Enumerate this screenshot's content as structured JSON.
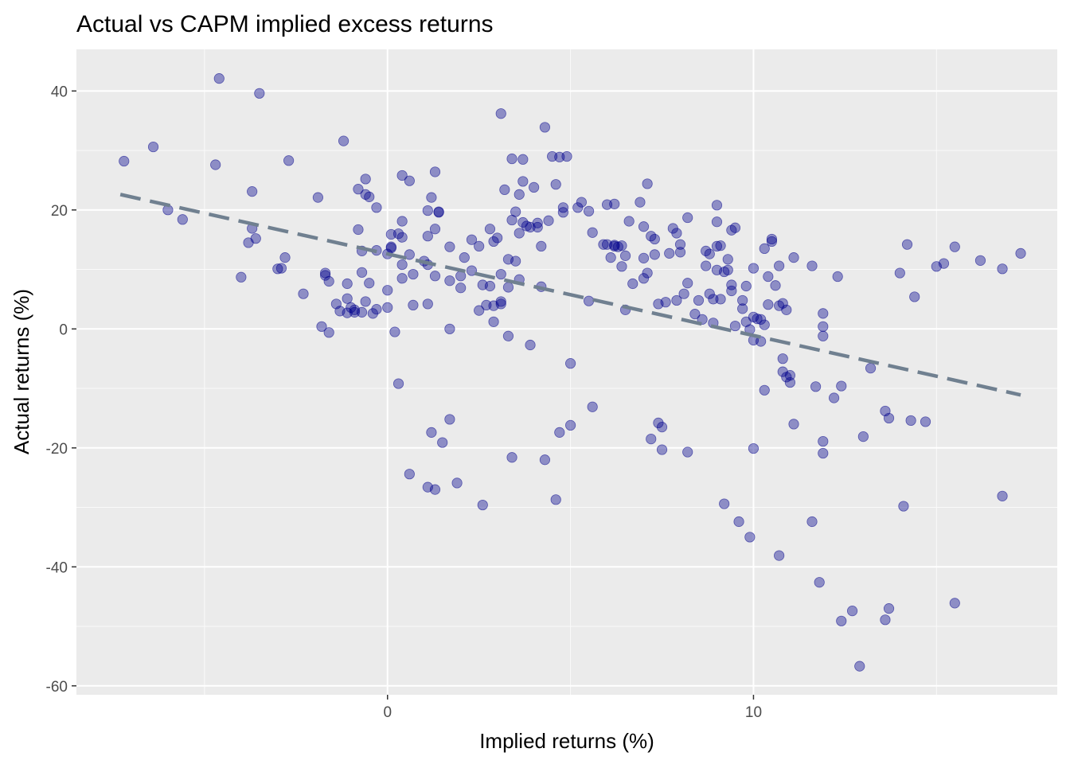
{
  "chart_data": {
    "type": "scatter",
    "title": "Actual vs CAPM implied excess returns",
    "xlabel": "Implied returns (%)",
    "ylabel": "Actual returns (%)",
    "xlim": [
      -8.5,
      18.3
    ],
    "ylim": [
      -61.5,
      47
    ],
    "x_ticks": [
      0,
      10
    ],
    "x_minor_ticks": [
      -5,
      5,
      15
    ],
    "y_ticks": [
      -60,
      -40,
      -20,
      0,
      20,
      40
    ],
    "y_minor_ticks": [
      -50,
      -30,
      -10,
      10,
      30
    ],
    "grid": true,
    "legend": "none",
    "point_color": "#00008b",
    "point_opacity": 0.4,
    "fit_line": {
      "style": "dashed",
      "color": "#708090",
      "x": [
        -7.3,
        17.3
      ],
      "y": [
        22.6,
        -11.1
      ]
    },
    "points": [
      {
        "x": -7.2,
        "y": 28.2
      },
      {
        "x": -6.4,
        "y": 30.6
      },
      {
        "x": -6.0,
        "y": 20.0
      },
      {
        "x": -5.6,
        "y": 18.4
      },
      {
        "x": -4.7,
        "y": 27.6
      },
      {
        "x": -4.6,
        "y": 42.1
      },
      {
        "x": -4.0,
        "y": 8.7
      },
      {
        "x": -3.8,
        "y": 14.5
      },
      {
        "x": -3.7,
        "y": 16.9
      },
      {
        "x": -3.7,
        "y": 23.1
      },
      {
        "x": -3.6,
        "y": 15.2
      },
      {
        "x": -3.5,
        "y": 39.6
      },
      {
        "x": -3.0,
        "y": 10.1
      },
      {
        "x": -2.9,
        "y": 10.2
      },
      {
        "x": -2.8,
        "y": 12.0
      },
      {
        "x": -2.7,
        "y": 28.3
      },
      {
        "x": -2.3,
        "y": 5.9
      },
      {
        "x": -1.9,
        "y": 22.1
      },
      {
        "x": -1.8,
        "y": 0.4
      },
      {
        "x": -1.7,
        "y": 9.4
      },
      {
        "x": -1.7,
        "y": 9.0
      },
      {
        "x": -1.6,
        "y": 8.0
      },
      {
        "x": -1.6,
        "y": -0.6
      },
      {
        "x": -1.4,
        "y": 4.2
      },
      {
        "x": -1.3,
        "y": 3.0
      },
      {
        "x": -1.2,
        "y": 31.6
      },
      {
        "x": -1.1,
        "y": 7.6
      },
      {
        "x": -1.1,
        "y": 5.1
      },
      {
        "x": -1.1,
        "y": 2.7
      },
      {
        "x": -1.0,
        "y": 3.6
      },
      {
        "x": -0.9,
        "y": 2.8
      },
      {
        "x": -0.9,
        "y": 3.2
      },
      {
        "x": -0.8,
        "y": 16.7
      },
      {
        "x": -0.8,
        "y": 23.5
      },
      {
        "x": -0.7,
        "y": 2.8
      },
      {
        "x": -0.7,
        "y": 9.5
      },
      {
        "x": -0.7,
        "y": 13.1
      },
      {
        "x": -0.6,
        "y": 22.6
      },
      {
        "x": -0.6,
        "y": 25.2
      },
      {
        "x": -0.6,
        "y": 4.6
      },
      {
        "x": -0.5,
        "y": 22.2
      },
      {
        "x": -0.5,
        "y": 7.7
      },
      {
        "x": -0.4,
        "y": 2.6
      },
      {
        "x": -0.3,
        "y": 3.3
      },
      {
        "x": -0.3,
        "y": 13.2
      },
      {
        "x": -0.3,
        "y": 20.4
      },
      {
        "x": 0.0,
        "y": 12.6
      },
      {
        "x": 0.0,
        "y": 6.5
      },
      {
        "x": 0.0,
        "y": 3.6
      },
      {
        "x": 0.1,
        "y": 13.6
      },
      {
        "x": 0.1,
        "y": 13.8
      },
      {
        "x": 0.1,
        "y": 15.9
      },
      {
        "x": 0.2,
        "y": -0.5
      },
      {
        "x": 0.3,
        "y": -9.2
      },
      {
        "x": 0.3,
        "y": 16.0
      },
      {
        "x": 0.4,
        "y": 15.4
      },
      {
        "x": 0.4,
        "y": 18.1
      },
      {
        "x": 0.4,
        "y": 10.8
      },
      {
        "x": 0.4,
        "y": 25.8
      },
      {
        "x": 0.4,
        "y": 8.5
      },
      {
        "x": 0.6,
        "y": 24.9
      },
      {
        "x": 0.6,
        "y": 12.5
      },
      {
        "x": 0.6,
        "y": -24.4
      },
      {
        "x": 0.7,
        "y": 9.2
      },
      {
        "x": 0.7,
        "y": 4.0
      },
      {
        "x": 1.0,
        "y": 11.4
      },
      {
        "x": 1.1,
        "y": 4.2
      },
      {
        "x": 1.1,
        "y": 19.9
      },
      {
        "x": 1.1,
        "y": 15.6
      },
      {
        "x": 1.1,
        "y": 10.8
      },
      {
        "x": 1.1,
        "y": -26.6
      },
      {
        "x": 1.2,
        "y": 22.1
      },
      {
        "x": 1.2,
        "y": -17.4
      },
      {
        "x": 1.3,
        "y": 26.4
      },
      {
        "x": 1.3,
        "y": 16.8
      },
      {
        "x": 1.3,
        "y": 8.9
      },
      {
        "x": 1.3,
        "y": -27.0
      },
      {
        "x": 1.4,
        "y": 19.6
      },
      {
        "x": 1.4,
        "y": 19.7
      },
      {
        "x": 1.5,
        "y": -19.1
      },
      {
        "x": 1.7,
        "y": -15.2
      },
      {
        "x": 1.7,
        "y": 13.8
      },
      {
        "x": 1.7,
        "y": 8.1
      },
      {
        "x": 1.7,
        "y": 0.0
      },
      {
        "x": 1.9,
        "y": -25.9
      },
      {
        "x": 2.0,
        "y": 6.9
      },
      {
        "x": 2.0,
        "y": 8.9
      },
      {
        "x": 2.1,
        "y": 12.0
      },
      {
        "x": 2.3,
        "y": 15.0
      },
      {
        "x": 2.3,
        "y": 9.8
      },
      {
        "x": 2.5,
        "y": 3.1
      },
      {
        "x": 2.5,
        "y": 13.9
      },
      {
        "x": 2.6,
        "y": -29.6
      },
      {
        "x": 2.6,
        "y": 7.4
      },
      {
        "x": 2.7,
        "y": 4.0
      },
      {
        "x": 2.8,
        "y": 16.8
      },
      {
        "x": 2.8,
        "y": 7.2
      },
      {
        "x": 2.9,
        "y": 1.2
      },
      {
        "x": 2.9,
        "y": 3.9
      },
      {
        "x": 2.9,
        "y": 14.7
      },
      {
        "x": 3.0,
        "y": 15.3
      },
      {
        "x": 3.1,
        "y": 36.2
      },
      {
        "x": 3.1,
        "y": 9.2
      },
      {
        "x": 3.1,
        "y": 4.6
      },
      {
        "x": 3.1,
        "y": 4.2
      },
      {
        "x": 3.2,
        "y": 23.4
      },
      {
        "x": 3.3,
        "y": -1.2
      },
      {
        "x": 3.3,
        "y": 7.0
      },
      {
        "x": 3.3,
        "y": 11.7
      },
      {
        "x": 3.4,
        "y": 28.6
      },
      {
        "x": 3.4,
        "y": -21.6
      },
      {
        "x": 3.4,
        "y": 18.3
      },
      {
        "x": 3.5,
        "y": 11.4
      },
      {
        "x": 3.5,
        "y": 19.7
      },
      {
        "x": 3.6,
        "y": 22.6
      },
      {
        "x": 3.6,
        "y": 8.3
      },
      {
        "x": 3.6,
        "y": 16.1
      },
      {
        "x": 3.7,
        "y": 28.5
      },
      {
        "x": 3.7,
        "y": 24.8
      },
      {
        "x": 3.7,
        "y": 17.9
      },
      {
        "x": 3.8,
        "y": 17.3
      },
      {
        "x": 3.9,
        "y": -2.7
      },
      {
        "x": 3.9,
        "y": 17.1
      },
      {
        "x": 4.0,
        "y": 23.8
      },
      {
        "x": 4.1,
        "y": 17.1
      },
      {
        "x": 4.1,
        "y": 17.8
      },
      {
        "x": 4.2,
        "y": 7.1
      },
      {
        "x": 4.2,
        "y": 13.9
      },
      {
        "x": 4.3,
        "y": 33.9
      },
      {
        "x": 4.3,
        "y": -22.0
      },
      {
        "x": 4.4,
        "y": 18.2
      },
      {
        "x": 4.5,
        "y": 29.0
      },
      {
        "x": 4.6,
        "y": 24.3
      },
      {
        "x": 4.6,
        "y": -28.7
      },
      {
        "x": 4.7,
        "y": -17.4
      },
      {
        "x": 4.7,
        "y": 28.9
      },
      {
        "x": 4.8,
        "y": 19.6
      },
      {
        "x": 4.8,
        "y": 20.4
      },
      {
        "x": 4.9,
        "y": 29.0
      },
      {
        "x": 5.0,
        "y": -16.2
      },
      {
        "x": 5.0,
        "y": -5.8
      },
      {
        "x": 5.2,
        "y": 20.4
      },
      {
        "x": 5.3,
        "y": 21.3
      },
      {
        "x": 5.5,
        "y": 19.8
      },
      {
        "x": 5.5,
        "y": 4.7
      },
      {
        "x": 5.6,
        "y": -13.1
      },
      {
        "x": 5.6,
        "y": 16.2
      },
      {
        "x": 5.9,
        "y": 14.2
      },
      {
        "x": 6.0,
        "y": 20.9
      },
      {
        "x": 6.0,
        "y": 14.2
      },
      {
        "x": 6.1,
        "y": 12.0
      },
      {
        "x": 6.2,
        "y": 13.9
      },
      {
        "x": 6.2,
        "y": 14.1
      },
      {
        "x": 6.2,
        "y": 21.0
      },
      {
        "x": 6.3,
        "y": 13.8
      },
      {
        "x": 6.4,
        "y": 14.0
      },
      {
        "x": 6.4,
        "y": 10.5
      },
      {
        "x": 6.5,
        "y": 3.2
      },
      {
        "x": 6.5,
        "y": 12.3
      },
      {
        "x": 6.6,
        "y": 18.1
      },
      {
        "x": 6.7,
        "y": 7.6
      },
      {
        "x": 6.9,
        "y": 21.3
      },
      {
        "x": 7.0,
        "y": 8.5
      },
      {
        "x": 7.0,
        "y": 17.2
      },
      {
        "x": 7.0,
        "y": 11.9
      },
      {
        "x": 7.1,
        "y": 24.4
      },
      {
        "x": 7.1,
        "y": 9.4
      },
      {
        "x": 7.2,
        "y": 15.6
      },
      {
        "x": 7.2,
        "y": -18.5
      },
      {
        "x": 7.3,
        "y": 12.5
      },
      {
        "x": 7.3,
        "y": 15.1
      },
      {
        "x": 7.4,
        "y": -15.8
      },
      {
        "x": 7.4,
        "y": 4.2
      },
      {
        "x": 7.5,
        "y": -16.5
      },
      {
        "x": 7.5,
        "y": -20.3
      },
      {
        "x": 7.6,
        "y": 4.5
      },
      {
        "x": 7.7,
        "y": 12.7
      },
      {
        "x": 7.8,
        "y": 16.9
      },
      {
        "x": 7.9,
        "y": 16.1
      },
      {
        "x": 7.9,
        "y": 4.8
      },
      {
        "x": 8.0,
        "y": 12.9
      },
      {
        "x": 8.0,
        "y": 14.2
      },
      {
        "x": 8.1,
        "y": 5.9
      },
      {
        "x": 8.2,
        "y": 18.7
      },
      {
        "x": 8.2,
        "y": 7.7
      },
      {
        "x": 8.2,
        "y": -20.7
      },
      {
        "x": 8.4,
        "y": 2.5
      },
      {
        "x": 8.5,
        "y": 4.8
      },
      {
        "x": 8.6,
        "y": 1.6
      },
      {
        "x": 8.7,
        "y": 13.1
      },
      {
        "x": 8.7,
        "y": 10.6
      },
      {
        "x": 8.8,
        "y": 12.6
      },
      {
        "x": 8.8,
        "y": 5.9
      },
      {
        "x": 8.9,
        "y": 5.0
      },
      {
        "x": 8.9,
        "y": 1.0
      },
      {
        "x": 9.0,
        "y": 20.8
      },
      {
        "x": 9.0,
        "y": 18.0
      },
      {
        "x": 9.0,
        "y": 13.9
      },
      {
        "x": 9.0,
        "y": 9.9
      },
      {
        "x": 9.1,
        "y": 5.0
      },
      {
        "x": 9.1,
        "y": 14.0
      },
      {
        "x": 9.2,
        "y": -29.4
      },
      {
        "x": 9.2,
        "y": 9.6
      },
      {
        "x": 9.3,
        "y": 11.7
      },
      {
        "x": 9.3,
        "y": 9.9
      },
      {
        "x": 9.4,
        "y": 16.6
      },
      {
        "x": 9.4,
        "y": 6.4
      },
      {
        "x": 9.4,
        "y": 7.4
      },
      {
        "x": 9.5,
        "y": 17.0
      },
      {
        "x": 9.5,
        "y": 0.5
      },
      {
        "x": 9.6,
        "y": -32.4
      },
      {
        "x": 9.7,
        "y": 4.8
      },
      {
        "x": 9.7,
        "y": 3.4
      },
      {
        "x": 9.8,
        "y": 7.2
      },
      {
        "x": 9.8,
        "y": 1.2
      },
      {
        "x": 9.9,
        "y": -0.1
      },
      {
        "x": 9.9,
        "y": -35.0
      },
      {
        "x": 10.0,
        "y": 10.2
      },
      {
        "x": 10.0,
        "y": 2.0
      },
      {
        "x": 10.0,
        "y": -1.9
      },
      {
        "x": 10.0,
        "y": -20.1
      },
      {
        "x": 10.1,
        "y": 1.7
      },
      {
        "x": 10.2,
        "y": 1.6
      },
      {
        "x": 10.2,
        "y": -2.1
      },
      {
        "x": 10.3,
        "y": 0.7
      },
      {
        "x": 10.3,
        "y": -10.3
      },
      {
        "x": 10.3,
        "y": 13.5
      },
      {
        "x": 10.4,
        "y": 4.1
      },
      {
        "x": 10.4,
        "y": 8.8
      },
      {
        "x": 10.5,
        "y": 15.1
      },
      {
        "x": 10.5,
        "y": 14.7
      },
      {
        "x": 10.6,
        "y": 7.3
      },
      {
        "x": 10.7,
        "y": 3.9
      },
      {
        "x": 10.7,
        "y": -38.1
      },
      {
        "x": 10.7,
        "y": 10.6
      },
      {
        "x": 10.8,
        "y": 4.3
      },
      {
        "x": 10.8,
        "y": -5.0
      },
      {
        "x": 10.8,
        "y": -7.2
      },
      {
        "x": 10.9,
        "y": -8.1
      },
      {
        "x": 10.9,
        "y": 3.2
      },
      {
        "x": 11.0,
        "y": -7.8
      },
      {
        "x": 11.0,
        "y": -9.0
      },
      {
        "x": 11.1,
        "y": 12.0
      },
      {
        "x": 11.1,
        "y": -16.0
      },
      {
        "x": 11.6,
        "y": 10.6
      },
      {
        "x": 11.6,
        "y": -32.4
      },
      {
        "x": 11.7,
        "y": -9.7
      },
      {
        "x": 11.8,
        "y": -42.6
      },
      {
        "x": 11.9,
        "y": -18.9
      },
      {
        "x": 11.9,
        "y": -20.9
      },
      {
        "x": 11.9,
        "y": 2.6
      },
      {
        "x": 11.9,
        "y": 0.4
      },
      {
        "x": 11.9,
        "y": -1.2
      },
      {
        "x": 12.2,
        "y": -11.6
      },
      {
        "x": 12.3,
        "y": 8.8
      },
      {
        "x": 12.4,
        "y": -9.6
      },
      {
        "x": 12.4,
        "y": -49.1
      },
      {
        "x": 12.7,
        "y": -47.4
      },
      {
        "x": 12.9,
        "y": -56.7
      },
      {
        "x": 13.0,
        "y": -18.1
      },
      {
        "x": 13.2,
        "y": -6.6
      },
      {
        "x": 13.6,
        "y": -48.9
      },
      {
        "x": 13.6,
        "y": -13.8
      },
      {
        "x": 13.7,
        "y": -15.0
      },
      {
        "x": 13.7,
        "y": -47.0
      },
      {
        "x": 14.0,
        "y": 9.4
      },
      {
        "x": 14.1,
        "y": -29.8
      },
      {
        "x": 14.2,
        "y": 14.2
      },
      {
        "x": 14.3,
        "y": -15.4
      },
      {
        "x": 14.4,
        "y": 5.4
      },
      {
        "x": 14.7,
        "y": -15.6
      },
      {
        "x": 15.0,
        "y": 10.5
      },
      {
        "x": 15.2,
        "y": 11.0
      },
      {
        "x": 15.5,
        "y": 13.8
      },
      {
        "x": 15.5,
        "y": -46.1
      },
      {
        "x": 16.2,
        "y": 11.5
      },
      {
        "x": 16.8,
        "y": -28.1
      },
      {
        "x": 16.8,
        "y": 10.1
      },
      {
        "x": 17.3,
        "y": 12.7
      }
    ]
  }
}
